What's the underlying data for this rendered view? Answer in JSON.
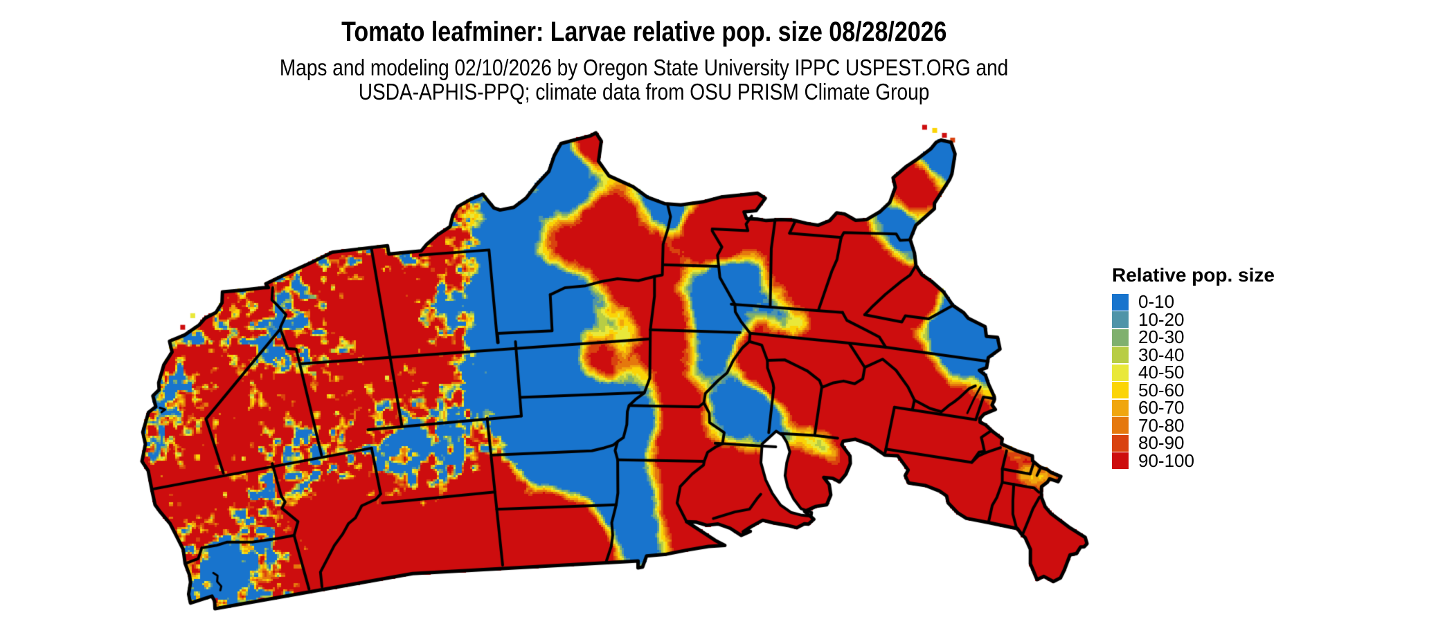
{
  "title": "Tomato leafminer: Larvae relative pop. size 08/28/2026",
  "subtitle_line1": "Maps and modeling 02/10/2026 by Oregon State University IPPC USPEST.ORG and",
  "subtitle_line2": "USDA-APHIS-PPQ; climate data from OSU PRISM Climate Group",
  "legend": {
    "title": "Relative pop. size",
    "items": [
      {
        "label": "0-10",
        "color": "#1874cd"
      },
      {
        "label": "10-20",
        "color": "#4f94a8"
      },
      {
        "label": "20-30",
        "color": "#7fb06e"
      },
      {
        "label": "30-40",
        "color": "#b8cd44"
      },
      {
        "label": "40-50",
        "color": "#e9e83a"
      },
      {
        "label": "50-60",
        "color": "#fbd406"
      },
      {
        "label": "60-70",
        "color": "#f0a60e"
      },
      {
        "label": "70-80",
        "color": "#e5780d"
      },
      {
        "label": "80-90",
        "color": "#d9420f"
      },
      {
        "label": "90-100",
        "color": "#cd0d0e"
      }
    ]
  },
  "map": {
    "region": "conterminous United States",
    "border_color": "#000000",
    "water_color": "#ffffff",
    "background": "#ffffff"
  }
}
